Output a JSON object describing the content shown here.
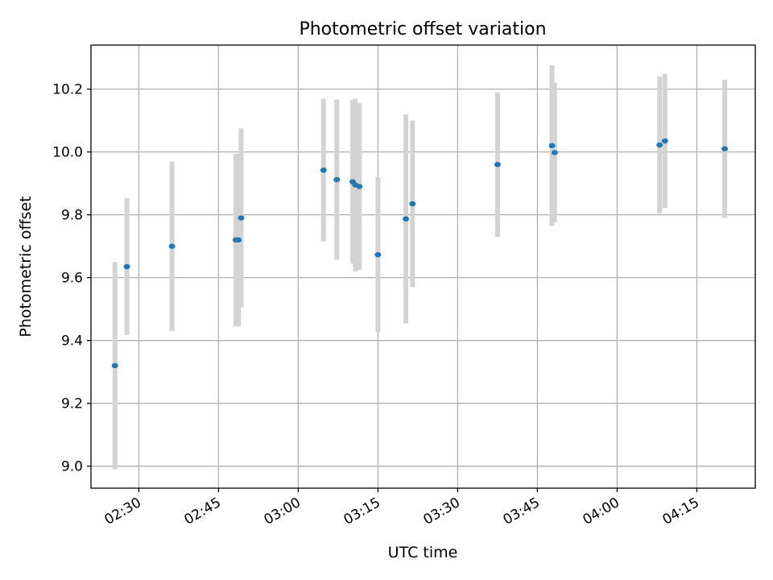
{
  "chart_data": {
    "type": "scatter",
    "title": "Photometric offset variation",
    "xlabel": "UTC time",
    "ylabel": "Photometric offset",
    "x_axis": {
      "kind": "time",
      "range": [
        "02:21",
        "04:26"
      ],
      "ticks": [
        "02:30",
        "02:45",
        "03:00",
        "03:15",
        "03:30",
        "03:45",
        "04:00",
        "04:15"
      ]
    },
    "y_axis": {
      "range": [
        8.93,
        10.34
      ],
      "ticks": [
        9.0,
        9.2,
        9.4,
        9.6,
        9.8,
        10.0,
        10.2
      ],
      "tick_labels": [
        "9.0",
        "9.2",
        "9.4",
        "9.6",
        "9.8",
        "10.0",
        "10.2"
      ]
    },
    "grid": true,
    "colors": {
      "point": "#1f77b4",
      "errorbar": "#d3d3d3"
    },
    "points": [
      {
        "t": "02:25:30",
        "y": 9.32,
        "err": 0.33
      },
      {
        "t": "02:27:45",
        "y": 9.635,
        "err": 0.218
      },
      {
        "t": "02:36:15",
        "y": 9.7,
        "err": 0.27
      },
      {
        "t": "02:48:15",
        "y": 9.72,
        "err": 0.275
      },
      {
        "t": "02:48:45",
        "y": 9.72,
        "err": 0.275
      },
      {
        "t": "02:49:15",
        "y": 9.79,
        "err": 0.285
      },
      {
        "t": "03:04:45",
        "y": 9.942,
        "err": 0.227
      },
      {
        "t": "03:07:15",
        "y": 9.912,
        "err": 0.255
      },
      {
        "t": "03:10:15",
        "y": 9.905,
        "err": 0.26
      },
      {
        "t": "03:10:45",
        "y": 9.895,
        "err": 0.275
      },
      {
        "t": "03:11:30",
        "y": 9.89,
        "err": 0.265
      },
      {
        "t": "03:15:00",
        "y": 9.673,
        "err": 0.247
      },
      {
        "t": "03:20:15",
        "y": 9.787,
        "err": 0.333
      },
      {
        "t": "03:21:30",
        "y": 9.835,
        "err": 0.265
      },
      {
        "t": "03:37:30",
        "y": 9.96,
        "err": 0.23
      },
      {
        "t": "03:47:45",
        "y": 10.02,
        "err": 0.256
      },
      {
        "t": "03:48:15",
        "y": 9.998,
        "err": 0.222
      },
      {
        "t": "04:08:00",
        "y": 10.022,
        "err": 0.218
      },
      {
        "t": "04:09:00",
        "y": 10.035,
        "err": 0.213
      },
      {
        "t": "04:20:15",
        "y": 10.01,
        "err": 0.22
      }
    ]
  }
}
